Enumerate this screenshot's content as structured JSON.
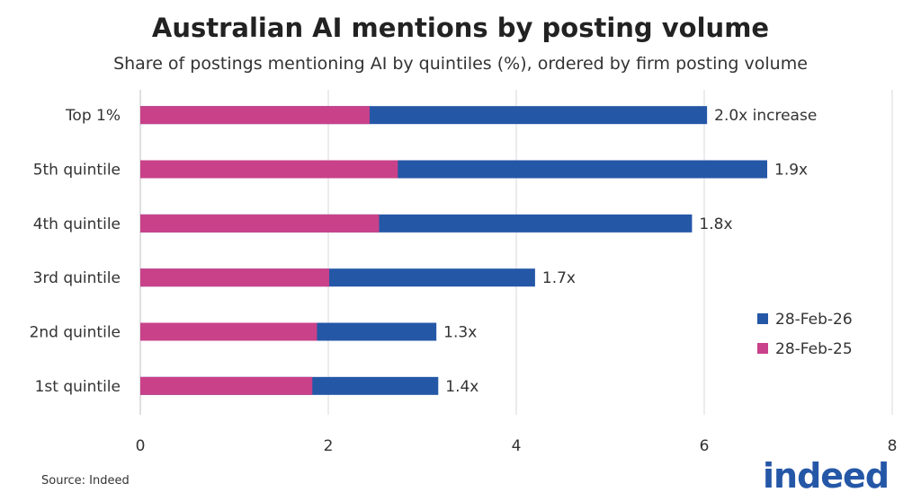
{
  "chart_data": {
    "type": "bar",
    "orientation": "horizontal",
    "title": "Australian AI mentions by posting volume",
    "subtitle": "Share of postings mentioning AI by quintiles (%), ordered by firm posting volume",
    "categories": [
      "Top 1%",
      "5th quintile",
      "4th quintile",
      "3rd quintile",
      "2nd quintile",
      "1st quintile"
    ],
    "series": [
      {
        "name": "28-Feb-26",
        "color": "#2557a7",
        "values": [
          6.03,
          6.67,
          5.87,
          4.2,
          3.15,
          3.17
        ]
      },
      {
        "name": "28-Feb-25",
        "color": "#c94189",
        "values": [
          2.44,
          2.74,
          2.54,
          2.01,
          1.88,
          1.83
        ]
      }
    ],
    "annotations": [
      "2.0x increase",
      "1.9x",
      "1.8x",
      "1.7x",
      "1.3x",
      "1.4x"
    ],
    "xlim": [
      0,
      8
    ],
    "xticks": [
      "0",
      "2",
      "4",
      "6",
      "8"
    ],
    "grid": true,
    "legend_position": "right"
  },
  "source": "Source: Indeed",
  "logo": "indeed"
}
